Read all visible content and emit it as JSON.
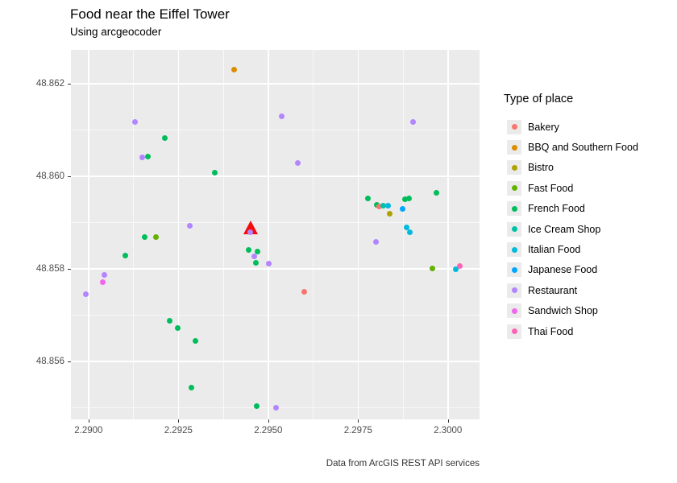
{
  "title": "Food near the Eiffel Tower",
  "subtitle": "Using arcgeocoder",
  "caption": "Data from ArcGIS REST API services",
  "legend": {
    "title": "Type of place",
    "items": [
      {
        "label": "Bakery",
        "color": "#F8766D"
      },
      {
        "label": "BBQ and Southern Food",
        "color": "#DB8E00"
      },
      {
        "label": "Bistro",
        "color": "#AEA200"
      },
      {
        "label": "Fast Food",
        "color": "#64B200"
      },
      {
        "label": "French Food",
        "color": "#00BD5C"
      },
      {
        "label": "Ice Cream Shop",
        "color": "#00C1A7"
      },
      {
        "label": "Italian Food",
        "color": "#00BADE"
      },
      {
        "label": "Japanese Food",
        "color": "#00A6FF"
      },
      {
        "label": "Restaurant",
        "color": "#B385FF"
      },
      {
        "label": "Sandwich Shop",
        "color": "#EF67EB"
      },
      {
        "label": "Thai Food",
        "color": "#FF63B6"
      }
    ]
  },
  "chart_data": {
    "type": "scatter",
    "title": "Food near the Eiffel Tower",
    "subtitle": "Using arcgeocoder",
    "xlabel": "",
    "ylabel": "",
    "grid": true,
    "legend_position": "right",
    "panel_background": "#EBEBEB",
    "xlim": [
      2.28951,
      2.30088
    ],
    "ylim": [
      48.85475,
      48.86273
    ],
    "x_ticks": [
      2.29,
      2.2925,
      2.295,
      2.2975,
      2.3
    ],
    "x_tick_labels": [
      "2.2900",
      "2.2925",
      "2.2950",
      "2.2975",
      "2.3000"
    ],
    "y_ticks": [
      48.856,
      48.858,
      48.86,
      48.862
    ],
    "y_tick_labels": [
      "48.856",
      "48.858",
      "48.860",
      "48.862"
    ],
    "x_minor": [
      2.29125,
      2.29375,
      2.29625,
      2.29875
    ],
    "y_minor": [
      48.855,
      48.857,
      48.859,
      48.861
    ],
    "marker": {
      "name": "eiffel-tower-marker",
      "shape": "triangle",
      "color": "#F40B0B",
      "x": 2.2945,
      "y": 48.85888
    },
    "points": [
      {
        "category": "BBQ and Southern Food",
        "x": 2.29405,
        "y": 48.86231
      },
      {
        "category": "Restaurant",
        "x": 2.2913,
        "y": 48.86118
      },
      {
        "category": "Restaurant",
        "x": 2.29537,
        "y": 48.8613
      },
      {
        "category": "Restaurant",
        "x": 2.29902,
        "y": 48.86118
      },
      {
        "category": "French Food",
        "x": 2.29213,
        "y": 48.86082
      },
      {
        "category": "Restaurant",
        "x": 2.2915,
        "y": 48.86041
      },
      {
        "category": "French Food",
        "x": 2.29166,
        "y": 48.86043
      },
      {
        "category": "Restaurant",
        "x": 2.29582,
        "y": 48.86029
      },
      {
        "category": "French Food",
        "x": 2.29351,
        "y": 48.86008
      },
      {
        "category": "French Food",
        "x": 2.29967,
        "y": 48.85965
      },
      {
        "category": "French Food",
        "x": 2.29777,
        "y": 48.85953
      },
      {
        "category": "French Food",
        "x": 2.2988,
        "y": 48.85951
      },
      {
        "category": "French Food",
        "x": 2.29891,
        "y": 48.85953
      },
      {
        "category": "French Food",
        "x": 2.29801,
        "y": 48.85939
      },
      {
        "category": "Bakery",
        "x": 2.29808,
        "y": 48.85935
      },
      {
        "category": "Ice Cream Shop",
        "x": 2.29819,
        "y": 48.85937
      },
      {
        "category": "Italian Food",
        "x": 2.29833,
        "y": 48.85937
      },
      {
        "category": "Japanese Food",
        "x": 2.29873,
        "y": 48.8593
      },
      {
        "category": "Bistro",
        "x": 2.29837,
        "y": 48.8592
      },
      {
        "category": "Restaurant",
        "x": 2.29282,
        "y": 48.85893
      },
      {
        "category": "Italian Food",
        "x": 2.29884,
        "y": 48.8589
      },
      {
        "category": "Italian Food",
        "x": 2.29893,
        "y": 48.85879
      },
      {
        "category": "Restaurant",
        "x": 2.2945,
        "y": 48.85879
      },
      {
        "category": "French Food",
        "x": 2.29445,
        "y": 48.85841
      },
      {
        "category": "French Food",
        "x": 2.2947,
        "y": 48.85838
      },
      {
        "category": "Restaurant",
        "x": 2.29461,
        "y": 48.85827
      },
      {
        "category": "French Food",
        "x": 2.29466,
        "y": 48.85813
      },
      {
        "category": "Restaurant",
        "x": 2.29501,
        "y": 48.85812
      },
      {
        "category": "Restaurant",
        "x": 2.29799,
        "y": 48.85859
      },
      {
        "category": "French Food",
        "x": 2.29103,
        "y": 48.85829
      },
      {
        "category": "Fast Food",
        "x": 2.29956,
        "y": 48.85801
      },
      {
        "category": "Italian Food",
        "x": 2.30021,
        "y": 48.85799
      },
      {
        "category": "Thai Food",
        "x": 2.30034,
        "y": 48.85806
      },
      {
        "category": "French Food",
        "x": 2.29157,
        "y": 48.85869
      },
      {
        "category": "Fast Food",
        "x": 2.29188,
        "y": 48.85869
      },
      {
        "category": "Restaurant",
        "x": 2.29043,
        "y": 48.85787
      },
      {
        "category": "Sandwich Shop",
        "x": 2.2904,
        "y": 48.85771
      },
      {
        "category": "Restaurant",
        "x": 2.28993,
        "y": 48.85745
      },
      {
        "category": "Bakery",
        "x": 2.296,
        "y": 48.8575
      },
      {
        "category": "French Food",
        "x": 2.29226,
        "y": 48.85688
      },
      {
        "category": "French Food",
        "x": 2.29248,
        "y": 48.85672
      },
      {
        "category": "French Food",
        "x": 2.29298,
        "y": 48.85644
      },
      {
        "category": "French Food",
        "x": 2.29287,
        "y": 48.85543
      },
      {
        "category": "French Food",
        "x": 2.29468,
        "y": 48.85503
      },
      {
        "category": "Restaurant",
        "x": 2.29522,
        "y": 48.855
      }
    ]
  }
}
